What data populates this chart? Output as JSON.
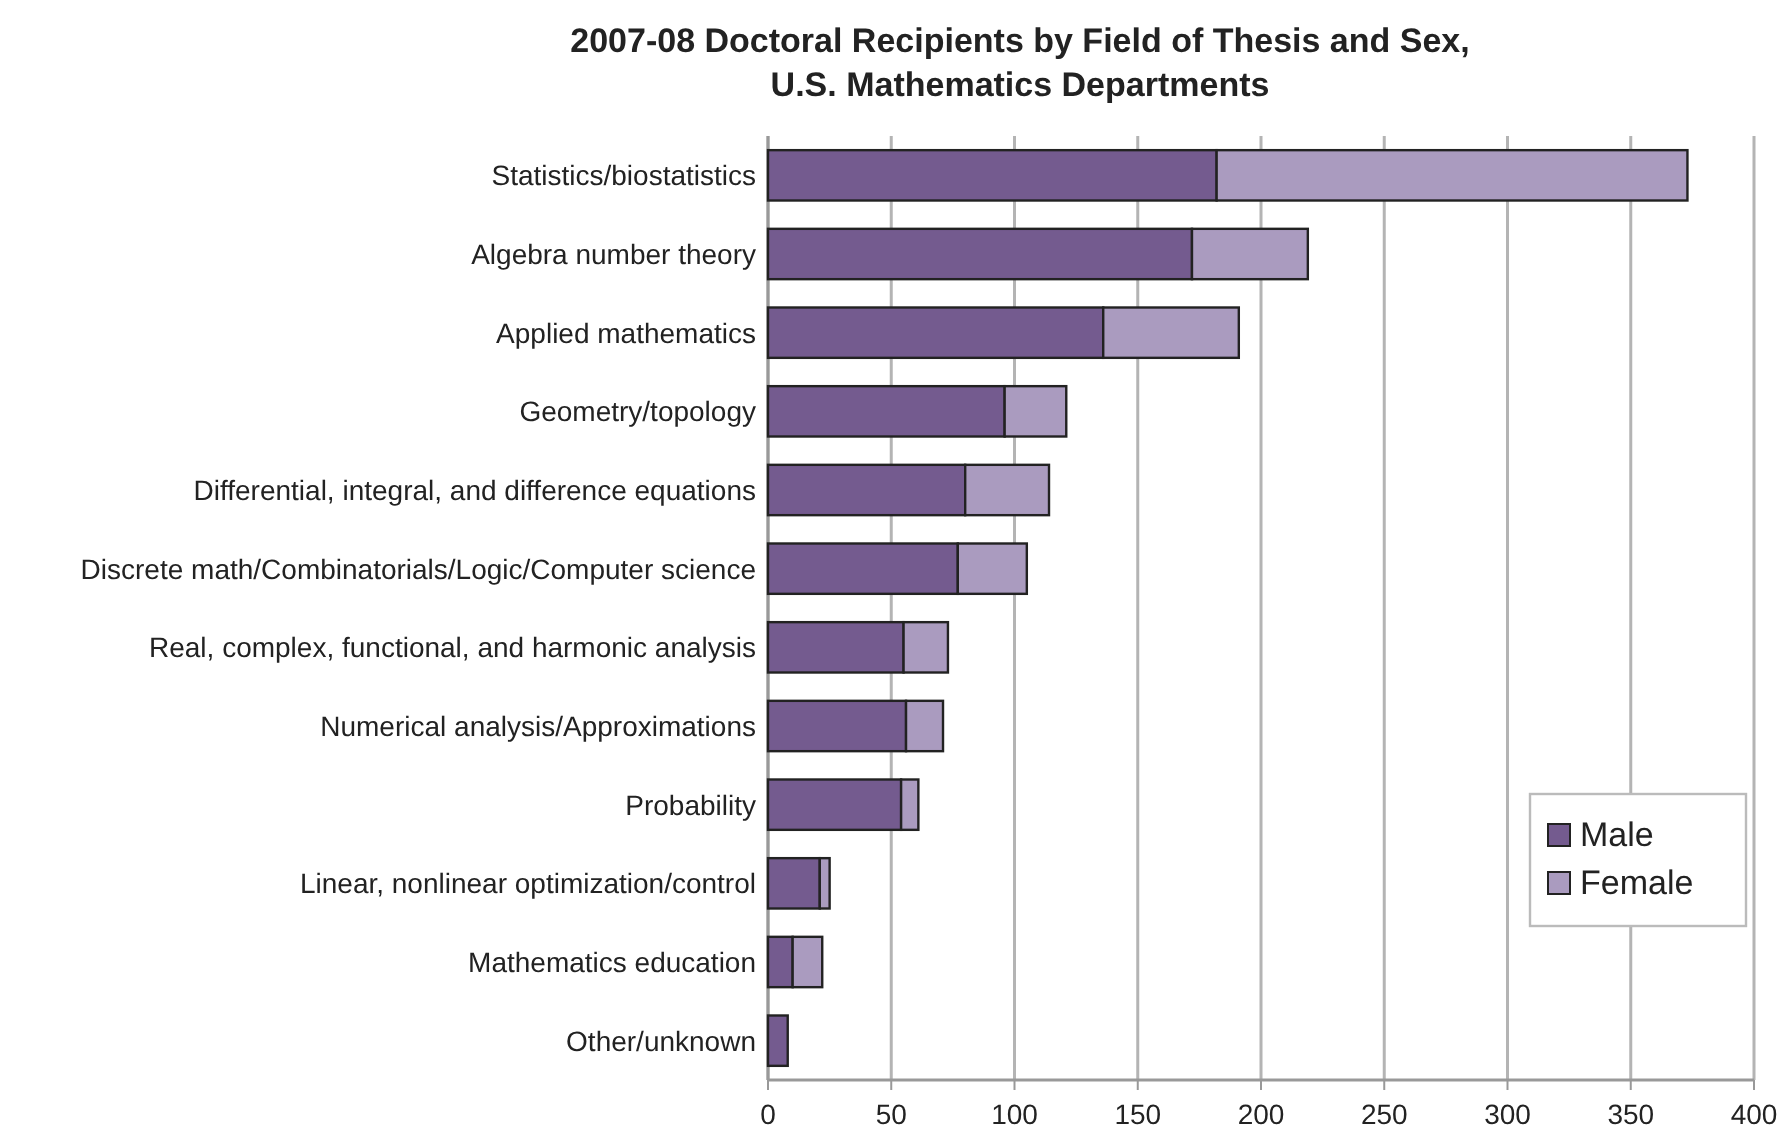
{
  "chart_data": {
    "type": "bar",
    "orientation": "horizontal",
    "stacked": true,
    "title": "2007-08 Doctoral Recipients by Field of Thesis and Sex,\nU.S. Mathematics Departments",
    "categories": [
      "Statistics/biostatistics",
      "Algebra number theory",
      "Applied mathematics",
      "Geometry/topology",
      "Differential, integral, and difference equations",
      "Discrete math/Combinatorials/Logic/Computer science",
      "Real, complex, functional, and harmonic analysis",
      "Numerical analysis/Approximations",
      "Probability",
      "Linear, nonlinear optimization/control",
      "Mathematics education",
      "Other/unknown"
    ],
    "series": [
      {
        "name": "Male",
        "color": "#745b8f",
        "values": [
          182,
          172,
          136,
          96,
          80,
          77,
          55,
          56,
          54,
          21,
          10,
          8
        ]
      },
      {
        "name": "Female",
        "color": "#aa9bbf",
        "values": [
          191,
          47,
          55,
          25,
          34,
          28,
          18,
          15,
          7,
          4,
          12,
          0
        ]
      }
    ],
    "xlim": [
      0,
      400
    ],
    "xticks": [
      0,
      50,
      100,
      150,
      200,
      250,
      300,
      350,
      400
    ],
    "grid": "x",
    "legend": "right"
  }
}
